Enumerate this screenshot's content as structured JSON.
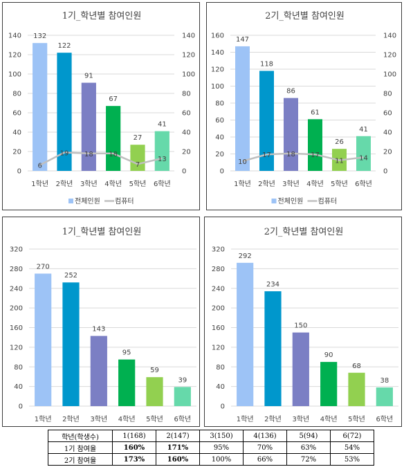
{
  "chart_data": [
    {
      "type": "bar",
      "title": "1기_학년별 참여인원",
      "categories": [
        "1학년",
        "2학년",
        "3학년",
        "4학년",
        "5학년",
        "6학년"
      ],
      "ylim": [
        0,
        140
      ],
      "y_ticks": [
        0,
        20,
        40,
        60,
        80,
        100,
        120,
        140
      ],
      "secondary_ylim": [
        0,
        140
      ],
      "secondary_y_ticks": [
        0,
        20,
        40,
        60,
        80,
        100,
        120,
        140
      ],
      "grid": true,
      "series": [
        {
          "name": "전체인원",
          "type": "bar",
          "values": [
            132,
            122,
            91,
            67,
            27,
            41
          ]
        },
        {
          "name": "컴퓨터",
          "type": "line",
          "axis": "secondary",
          "values": [
            6,
            19,
            18,
            18,
            7,
            13
          ]
        }
      ],
      "legend_position": "bottom"
    },
    {
      "type": "bar",
      "title": "2기_학년별 참여인원",
      "categories": [
        "1학년",
        "2학년",
        "3학년",
        "4학년",
        "5학년",
        "6학년"
      ],
      "ylim": [
        0,
        160
      ],
      "y_ticks": [
        0,
        20,
        40,
        60,
        80,
        100,
        120,
        140,
        160
      ],
      "secondary_ylim": [
        0,
        140
      ],
      "secondary_y_ticks": [
        0,
        20,
        40,
        60,
        80,
        100,
        120,
        140
      ],
      "grid": true,
      "series": [
        {
          "name": "전체인원",
          "type": "bar",
          "values": [
            147,
            118,
            86,
            61,
            26,
            41
          ]
        },
        {
          "name": "컴퓨터",
          "type": "line",
          "axis": "secondary",
          "values": [
            10,
            17,
            18,
            17,
            11,
            14
          ]
        }
      ],
      "legend_position": "bottom"
    },
    {
      "type": "bar",
      "title": "1기_학년별 참여인원",
      "categories": [
        "1학년",
        "2학년",
        "3학년",
        "4학년",
        "5학년",
        "6학년"
      ],
      "ylim": [
        0,
        320
      ],
      "y_ticks": [
        0,
        40,
        80,
        120,
        160,
        200,
        240,
        280,
        320
      ],
      "grid": true,
      "series": [
        {
          "type": "bar",
          "values": [
            270,
            252,
            143,
            95,
            59,
            39
          ]
        }
      ]
    },
    {
      "type": "bar",
      "title": "2기_학년별 참여인원",
      "categories": [
        "1학년",
        "2학년",
        "3학년",
        "4학년",
        "5학년",
        "6학년"
      ],
      "ylim": [
        0,
        320
      ],
      "y_ticks": [
        0,
        40,
        80,
        120,
        160,
        200,
        240,
        280,
        320
      ],
      "grid": true,
      "series": [
        {
          "type": "bar",
          "values": [
            292,
            234,
            150,
            90,
            68,
            38
          ]
        }
      ]
    }
  ],
  "colors": {
    "bars": [
      "#9dc3f6",
      "#0097cc",
      "#7b7fc4",
      "#00b050",
      "#92d050",
      "#66d9aa"
    ],
    "line": "#bfbfbf",
    "legend_bar": "#9dc3f6"
  },
  "table": {
    "header": [
      "학년(학생수)",
      "1(168)",
      "2(147)",
      "3(150)",
      "4(136)",
      "5(94)",
      "6(72)"
    ],
    "rows": [
      {
        "label": "1기 참여율",
        "values": [
          "160%",
          "171%",
          "95%",
          "70%",
          "63%",
          "54%"
        ],
        "bold": [
          true,
          true,
          false,
          false,
          false,
          false
        ]
      },
      {
        "label": "2기 참여율",
        "values": [
          "173%",
          "160%",
          "100%",
          "66%",
          "72%",
          "53%"
        ],
        "bold": [
          true,
          true,
          false,
          false,
          false,
          false
        ]
      }
    ]
  }
}
